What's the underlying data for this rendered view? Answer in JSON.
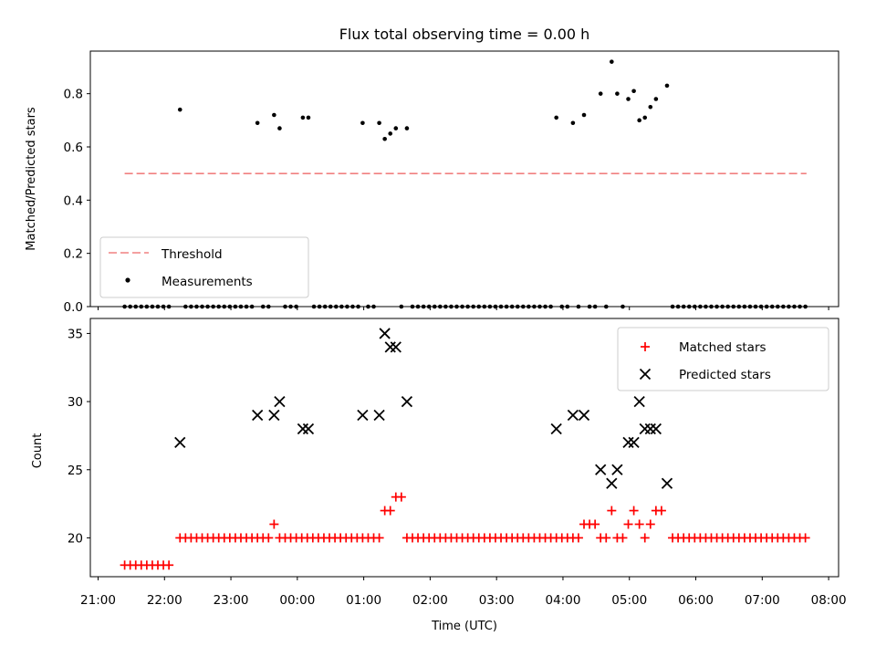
{
  "chart_data": [
    {
      "type": "scatter",
      "title": "Flux total observing time = 0.00 h",
      "xlabel": "",
      "ylabel": "Matched/Predicted stars",
      "xlim": [
        "20:53",
        "08:09"
      ],
      "ylim": [
        0,
        0.96
      ],
      "yticks": [
        0.0,
        0.2,
        0.4,
        0.6,
        0.8
      ],
      "ytick_labels": [
        "0.0",
        "0.2",
        "0.4",
        "0.6",
        "0.8"
      ],
      "legend": {
        "position": "lower-left",
        "entries": [
          "Threshold",
          "Measurements"
        ]
      },
      "threshold": {
        "name": "Threshold",
        "value": 0.5,
        "x_start": "21:24",
        "x_end": "07:40",
        "color": "#f08080",
        "style": "dashed"
      },
      "series": [
        {
          "name": "Measurements",
          "marker": "dot",
          "color": "#000000",
          "points": [
            [
              "22:14",
              0.74
            ],
            [
              "23:24",
              0.69
            ],
            [
              "23:39",
              0.72
            ],
            [
              "23:44",
              0.67
            ],
            [
              "00:05",
              0.71
            ],
            [
              "00:10",
              0.71
            ],
            [
              "00:59",
              0.69
            ],
            [
              "01:14",
              0.69
            ],
            [
              "01:19",
              0.63
            ],
            [
              "01:24",
              0.65
            ],
            [
              "01:29",
              0.67
            ],
            [
              "01:39",
              0.67
            ],
            [
              "03:54",
              0.71
            ],
            [
              "04:09",
              0.69
            ],
            [
              "04:19",
              0.72
            ],
            [
              "04:34",
              0.8
            ],
            [
              "04:44",
              0.92
            ],
            [
              "04:49",
              0.8
            ],
            [
              "04:59",
              0.78
            ],
            [
              "05:04",
              0.81
            ],
            [
              "05:09",
              0.7
            ],
            [
              "05:14",
              0.71
            ],
            [
              "05:19",
              0.75
            ],
            [
              "05:24",
              0.78
            ],
            [
              "05:34",
              0.83
            ]
          ],
          "zero_points": [
            "21:24",
            "21:29",
            "21:34",
            "21:39",
            "21:44",
            "21:49",
            "21:54",
            "21:59",
            "22:04",
            "22:19",
            "22:24",
            "22:29",
            "22:34",
            "22:39",
            "22:44",
            "22:49",
            "22:54",
            "22:59",
            "23:04",
            "23:09",
            "23:14",
            "23:19",
            "23:29",
            "23:34",
            "23:49",
            "23:54",
            "23:59",
            "00:15",
            "00:20",
            "00:25",
            "00:30",
            "00:35",
            "00:40",
            "00:45",
            "00:50",
            "00:55",
            "01:04",
            "01:09",
            "01:34",
            "01:44",
            "01:49",
            "01:54",
            "01:59",
            "02:04",
            "02:09",
            "02:14",
            "02:19",
            "02:24",
            "02:29",
            "02:34",
            "02:39",
            "02:44",
            "02:49",
            "02:54",
            "02:59",
            "03:04",
            "03:09",
            "03:14",
            "03:19",
            "03:24",
            "03:29",
            "03:34",
            "03:39",
            "03:44",
            "03:49",
            "03:59",
            "04:04",
            "04:14",
            "04:24",
            "04:29",
            "04:39",
            "04:54",
            "05:39",
            "05:44",
            "05:49",
            "05:54",
            "05:59",
            "06:04",
            "06:09",
            "06:14",
            "06:19",
            "06:24",
            "06:29",
            "06:34",
            "06:39",
            "06:44",
            "06:49",
            "06:54",
            "06:59",
            "07:04",
            "07:09",
            "07:14",
            "07:19",
            "07:24",
            "07:29",
            "07:34",
            "07:39"
          ]
        }
      ]
    },
    {
      "type": "scatter",
      "title": "",
      "xlabel": "Time (UTC)",
      "ylabel": "Count",
      "xlim": [
        "20:53",
        "08:09"
      ],
      "ylim": [
        17.15,
        36.1
      ],
      "yticks": [
        20,
        25,
        30,
        35
      ],
      "ytick_labels": [
        "20",
        "25",
        "30",
        "35"
      ],
      "xticks": [
        "21:00",
        "22:00",
        "23:00",
        "00:00",
        "01:00",
        "02:00",
        "03:00",
        "04:00",
        "05:00",
        "06:00",
        "07:00",
        "08:00"
      ],
      "legend": {
        "position": "upper-right",
        "entries": [
          "Matched stars",
          "Predicted stars"
        ]
      },
      "series": [
        {
          "name": "Matched stars",
          "marker": "plus",
          "color": "#ff0000",
          "baseline_groups": [
            {
              "from": "21:24",
              "to": "22:04",
              "step_min": 5,
              "value": 18
            },
            {
              "from": "22:14",
              "to": "01:14",
              "step_min": 5,
              "value": 20,
              "except": [
                "23:39"
              ]
            },
            {
              "from": "01:39",
              "to": "04:14",
              "step_min": 5,
              "value": 20
            },
            {
              "from": "05:39",
              "to": "07:39",
              "step_min": 5,
              "value": 20
            }
          ],
          "points": [
            [
              "23:39",
              21
            ],
            [
              "01:19",
              22
            ],
            [
              "01:24",
              22
            ],
            [
              "01:29",
              23
            ],
            [
              "01:34",
              23
            ],
            [
              "04:19",
              21
            ],
            [
              "04:24",
              21
            ],
            [
              "04:29",
              21
            ],
            [
              "04:34",
              20
            ],
            [
              "04:39",
              20
            ],
            [
              "04:44",
              22
            ],
            [
              "04:49",
              20
            ],
            [
              "04:54",
              20
            ],
            [
              "04:59",
              21
            ],
            [
              "05:04",
              22
            ],
            [
              "05:09",
              21
            ],
            [
              "05:14",
              20
            ],
            [
              "05:19",
              21
            ],
            [
              "05:24",
              22
            ],
            [
              "05:29",
              22
            ]
          ]
        },
        {
          "name": "Predicted stars",
          "marker": "x",
          "color": "#000000",
          "points": [
            [
              "22:14",
              27
            ],
            [
              "23:24",
              29
            ],
            [
              "23:39",
              29
            ],
            [
              "23:44",
              30
            ],
            [
              "00:05",
              28
            ],
            [
              "00:10",
              28
            ],
            [
              "00:59",
              29
            ],
            [
              "01:14",
              29
            ],
            [
              "01:19",
              35
            ],
            [
              "01:24",
              34
            ],
            [
              "01:29",
              34
            ],
            [
              "01:39",
              30
            ],
            [
              "03:54",
              28
            ],
            [
              "04:09",
              29
            ],
            [
              "04:19",
              29
            ],
            [
              "04:34",
              25
            ],
            [
              "04:44",
              24
            ],
            [
              "04:49",
              25
            ],
            [
              "04:59",
              27
            ],
            [
              "05:04",
              27
            ],
            [
              "05:09",
              30
            ],
            [
              "05:14",
              28
            ],
            [
              "05:19",
              28
            ],
            [
              "05:24",
              28
            ],
            [
              "05:34",
              24
            ]
          ]
        }
      ]
    }
  ]
}
